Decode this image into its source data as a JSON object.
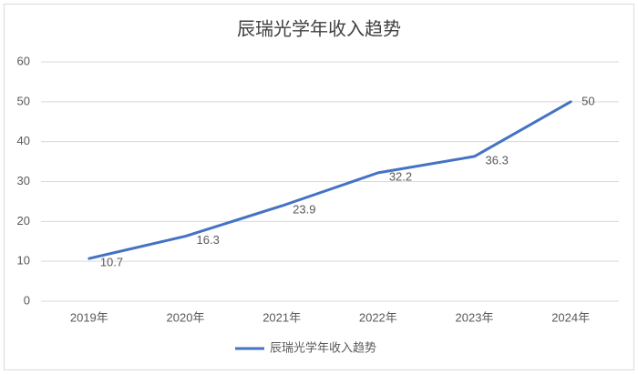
{
  "chart_data": {
    "type": "line",
    "title": "辰瑞光学年收入趋势",
    "categories": [
      "2019年",
      "2020年",
      "2021年",
      "2022年",
      "2023年",
      "2024年"
    ],
    "series": [
      {
        "name": "辰瑞光学年收入趋势",
        "color": "#4472c4",
        "values": [
          10.7,
          16.3,
          23.9,
          32.2,
          36.3,
          50
        ]
      }
    ],
    "ylim": [
      0,
      60
    ],
    "yticks": [
      0,
      10,
      20,
      30,
      40,
      50,
      60
    ],
    "grid": true,
    "legend": "bottom",
    "data_labels": true
  }
}
